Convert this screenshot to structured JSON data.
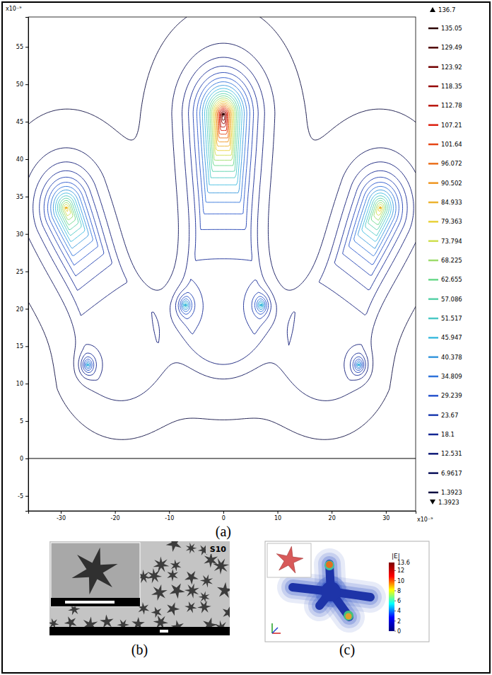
{
  "chart_data": {
    "type": "contour",
    "label": "(a)",
    "x_unit": "x10⁻⁹",
    "y_unit": "x10⁻⁹",
    "xlim": [
      -36,
      35.5
    ],
    "xticks": [
      -30,
      -20,
      -10,
      0,
      10,
      20,
      30
    ],
    "ylim": [
      -7,
      59
    ],
    "yticks": [
      -5,
      0,
      5,
      10,
      15,
      20,
      25,
      30,
      35,
      40,
      45,
      50,
      55
    ],
    "contour_levels": [
      135.05,
      129.49,
      123.92,
      118.35,
      112.78,
      107.21,
      101.64,
      96.072,
      90.502,
      84.933,
      79.363,
      73.794,
      68.225,
      62.655,
      57.086,
      51.517,
      45.947,
      40.378,
      34.809,
      29.239,
      23.67,
      18.1,
      12.531,
      6.9617,
      1.3923
    ],
    "colorbar": {
      "max": 136.7,
      "min": 1.3923
    },
    "hot_spots": [
      {
        "x": 0,
        "y": 46,
        "value": 135
      },
      {
        "x": -29,
        "y": 33.5,
        "value": 85
      },
      {
        "x": 29,
        "y": 33.5,
        "value": 85
      },
      {
        "x": -7,
        "y": 20.5,
        "value": 45
      },
      {
        "x": 7,
        "y": 20.5,
        "value": 45
      },
      {
        "x": -25,
        "y": 12.5,
        "value": 45
      },
      {
        "x": 25,
        "y": 12.5,
        "value": 45
      }
    ],
    "substrate_y": 0
  },
  "figure": {
    "panel_b": {
      "label": "(b)",
      "sample": "S10"
    },
    "panel_c": {
      "label": "(c)",
      "colorbar": {
        "title": "|E|",
        "max": 13.6,
        "ticks": [
          0,
          2,
          4,
          6,
          8,
          10,
          12
        ]
      }
    }
  }
}
